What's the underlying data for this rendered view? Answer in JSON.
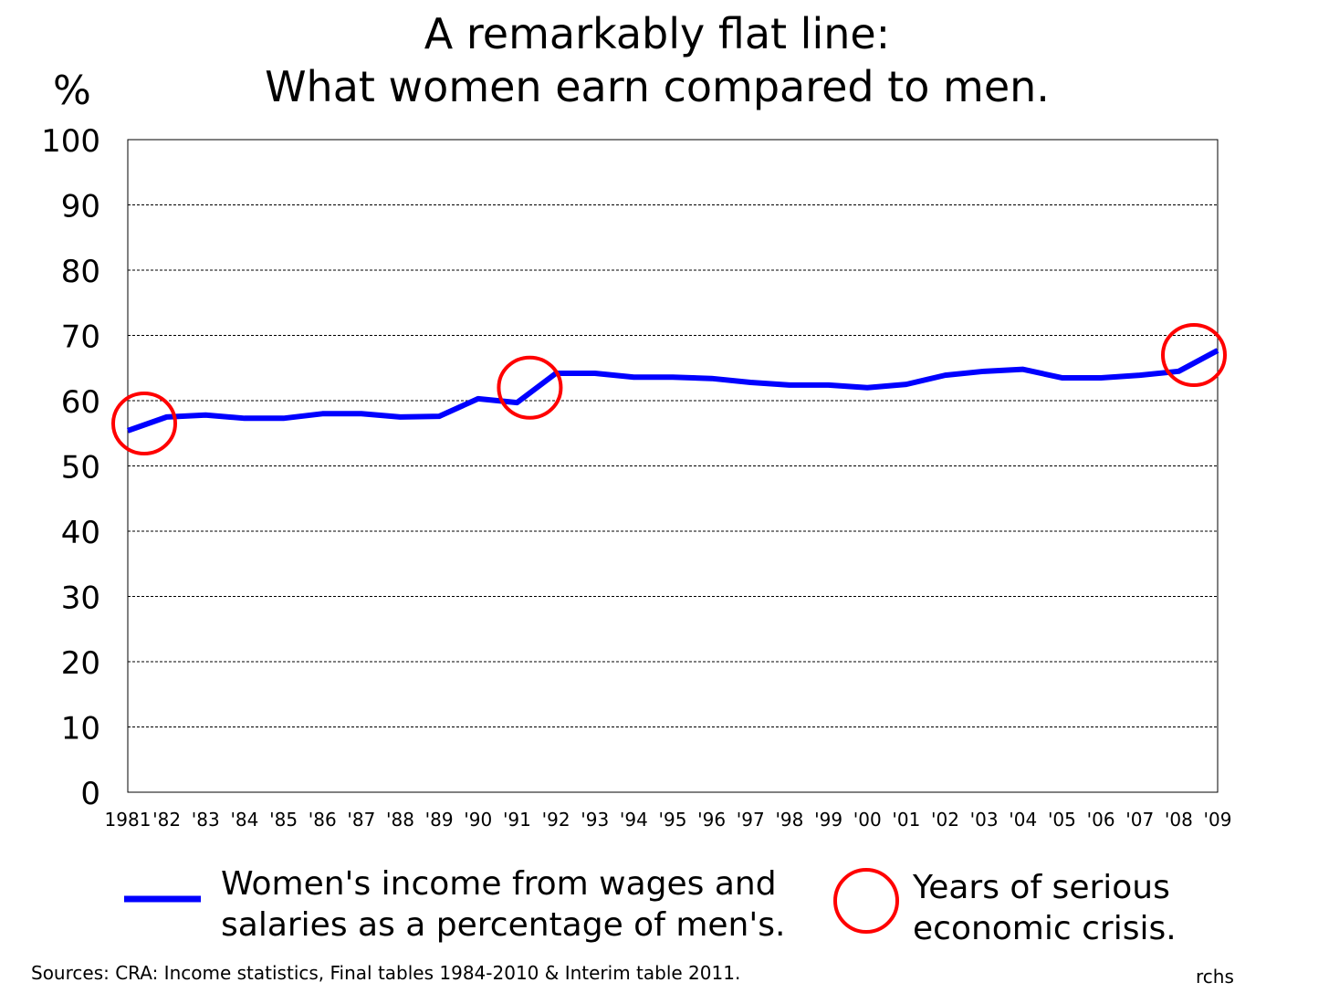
{
  "chart_data": {
    "type": "line",
    "title": "A remarkably flat line:",
    "subtitle": "What women earn compared to men.",
    "ylabel": "%",
    "xlabel": "",
    "ylim": [
      0,
      100
    ],
    "yticks": [
      "0",
      "10",
      "20",
      "30",
      "40",
      "50",
      "60",
      "70",
      "80",
      "90",
      "100"
    ],
    "grid": true,
    "categories": [
      "1981",
      "'82",
      "'83",
      "'84",
      "'85",
      "'86",
      "'87",
      "'88",
      "'89",
      "'90",
      "'91",
      "'92",
      "'93",
      "'94",
      "'95",
      "'96",
      "'97",
      "'98",
      "'99",
      "'00",
      "'01",
      "'02",
      "'03",
      "'04",
      "'05",
      "'06",
      "'07",
      "'08",
      "'09"
    ],
    "series": [
      {
        "name": "Women's income from wages and salaries as a percentage of men's.",
        "color": "#0000ff",
        "values": [
          55.4,
          57.5,
          57.8,
          57.3,
          57.3,
          58.0,
          58.0,
          57.5,
          57.6,
          60.3,
          59.7,
          64.2,
          64.2,
          63.6,
          63.6,
          63.4,
          62.8,
          62.4,
          62.4,
          62.0,
          62.5,
          63.9,
          64.5,
          64.8,
          63.5,
          63.5,
          63.9,
          64.5,
          67.7
        ]
      }
    ],
    "crisis_markers": {
      "label": "Years of serious economic crisis.",
      "color": "#ff0000",
      "at": [
        {
          "x": "1981",
          "y": 56.5
        },
        {
          "x": "'91",
          "y": 62
        },
        {
          "x": "'09",
          "y": 67
        }
      ]
    },
    "legend_placement": "bottom",
    "legend": {
      "line_label_1": "Women's income from wages and",
      "line_label_2": "salaries as a percentage of men's.",
      "circle_label_1": "Years of serious",
      "circle_label_2": "economic crisis."
    }
  },
  "source": "Sources: CRA: Income statistics, Final tables 1984-2010 & Interim table 2011.",
  "credit": "rchs"
}
